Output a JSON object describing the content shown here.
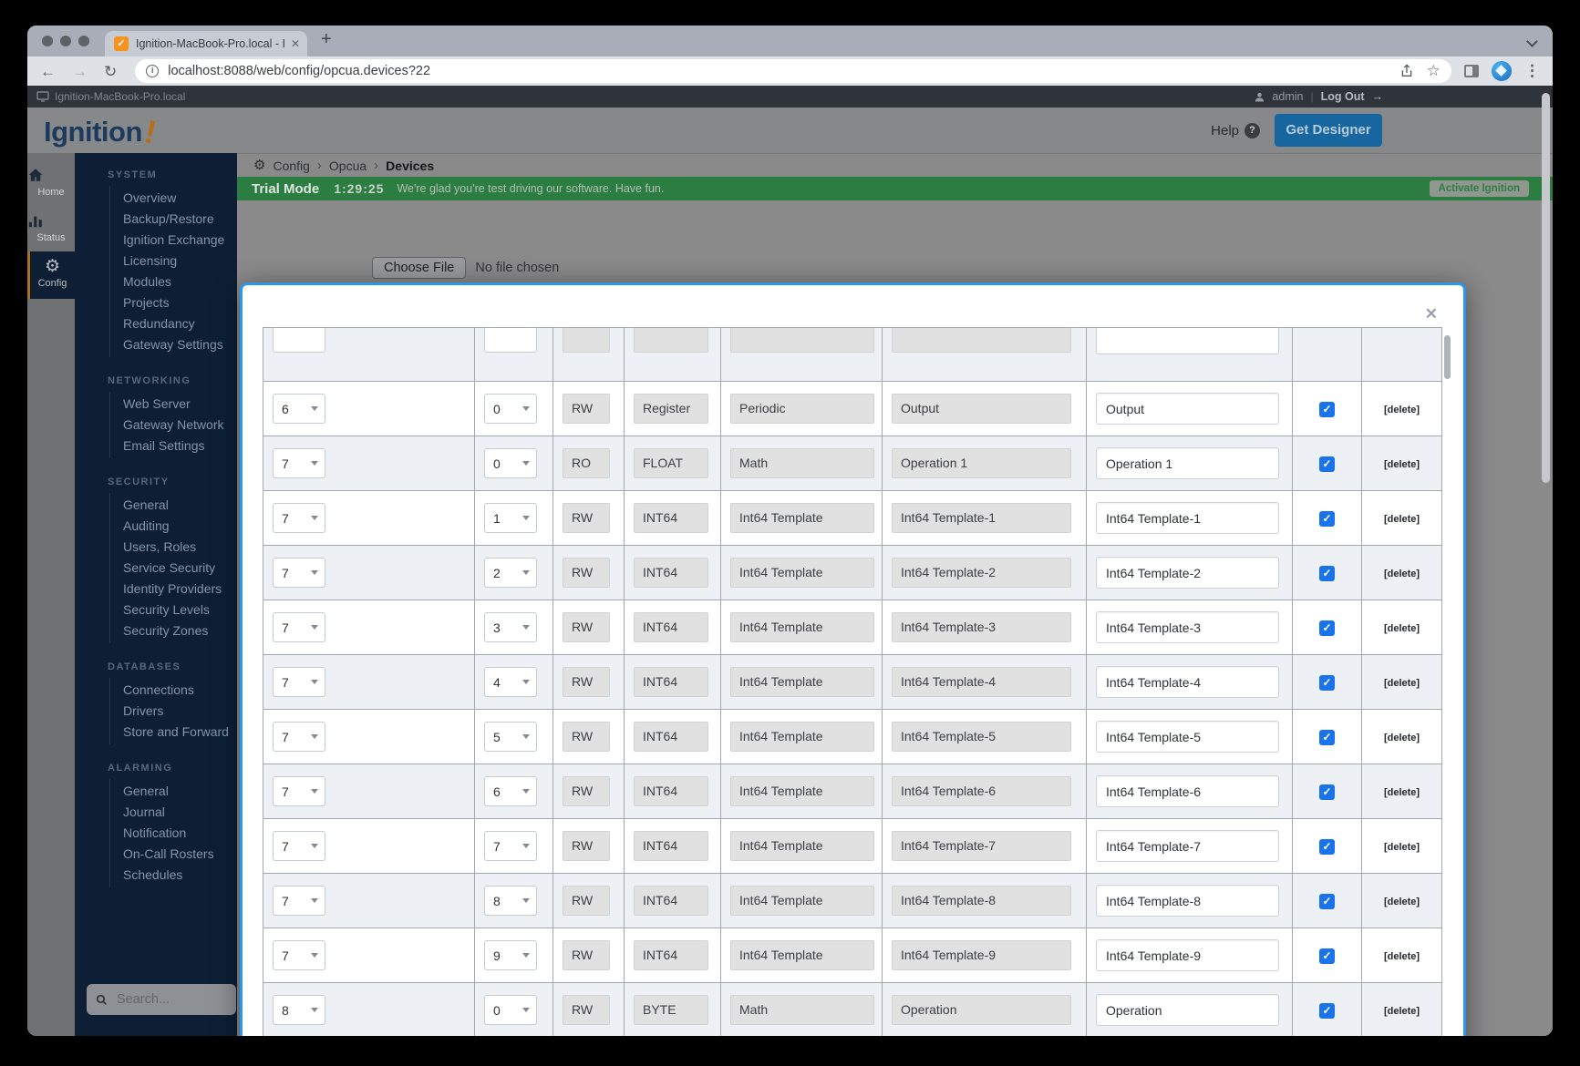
{
  "browser": {
    "tab_title": "Ignition-MacBook-Pro.local - Ig",
    "url": "localhost:8088/web/config/opcua.devices?22",
    "new_tab_glyph": "+",
    "tab_close_glyph": "✕"
  },
  "gateway": {
    "topbar": {
      "hostname": "Ignition-MacBook-Pro.local",
      "user": "admin",
      "divider": "|",
      "logout_label": "Log Out",
      "logout_arrow": "→"
    },
    "header": {
      "logo_text": "Ignition",
      "logo_mark": "!",
      "help_label": "Help",
      "help_glyph": "?",
      "designer_label": "Get Designer"
    }
  },
  "rail": {
    "items": [
      {
        "label": "Home",
        "active": false
      },
      {
        "label": "Status",
        "active": false
      },
      {
        "label": "Config",
        "active": true
      }
    ]
  },
  "sidebar": {
    "sections": [
      {
        "title": "SYSTEM",
        "items": [
          "Overview",
          "Backup/Restore",
          "Ignition Exchange",
          "Licensing",
          "Modules",
          "Projects",
          "Redundancy",
          "Gateway Settings"
        ]
      },
      {
        "title": "NETWORKING",
        "items": [
          "Web Server",
          "Gateway Network",
          "Email Settings"
        ]
      },
      {
        "title": "SECURITY",
        "items": [
          "General",
          "Auditing",
          "Users, Roles",
          "Service Security",
          "Identity Providers",
          "Security Levels",
          "Security Zones"
        ]
      },
      {
        "title": "DATABASES",
        "items": [
          "Connections",
          "Drivers",
          "Store and Forward"
        ]
      },
      {
        "title": "ALARMING",
        "items": [
          "General",
          "Journal",
          "Notification",
          "On-Call Rosters",
          "Schedules"
        ]
      }
    ],
    "search_placeholder": "Search..."
  },
  "breadcrumb": {
    "items": [
      "Config",
      "Opcua"
    ],
    "current": "Devices",
    "separator": "›",
    "gear_glyph": "⚙"
  },
  "trial": {
    "label": "Trial Mode",
    "time": "1:29:25",
    "message": "We're glad you're test driving our software. Have fun.",
    "activate_label": "Activate Ignition"
  },
  "content": {
    "choose_file_label": "Choose File",
    "no_file_label": "No file chosen"
  },
  "modal": {
    "close_glyph": "✕",
    "check_glyph": "✓",
    "delete_label": "[delete]",
    "rows": [
      {
        "device": "6",
        "index": "0",
        "access": "RW",
        "type": "Register",
        "template": "Periodic",
        "name": "Output",
        "value": "Output",
        "checked": true
      },
      {
        "device": "7",
        "index": "0",
        "access": "RO",
        "type": "FLOAT",
        "template": "Math",
        "name": "Operation 1",
        "value": "Operation 1",
        "checked": true
      },
      {
        "device": "7",
        "index": "1",
        "access": "RW",
        "type": "INT64",
        "template": "Int64 Template",
        "name": "Int64 Template-1",
        "value": "Int64 Template-1",
        "checked": true
      },
      {
        "device": "7",
        "index": "2",
        "access": "RW",
        "type": "INT64",
        "template": "Int64 Template",
        "name": "Int64 Template-2",
        "value": "Int64 Template-2",
        "checked": true
      },
      {
        "device": "7",
        "index": "3",
        "access": "RW",
        "type": "INT64",
        "template": "Int64 Template",
        "name": "Int64 Template-3",
        "value": "Int64 Template-3",
        "checked": true
      },
      {
        "device": "7",
        "index": "4",
        "access": "RW",
        "type": "INT64",
        "template": "Int64 Template",
        "name": "Int64 Template-4",
        "value": "Int64 Template-4",
        "checked": true
      },
      {
        "device": "7",
        "index": "5",
        "access": "RW",
        "type": "INT64",
        "template": "Int64 Template",
        "name": "Int64 Template-5",
        "value": "Int64 Template-5",
        "checked": true
      },
      {
        "device": "7",
        "index": "6",
        "access": "RW",
        "type": "INT64",
        "template": "Int64 Template",
        "name": "Int64 Template-6",
        "value": "Int64 Template-6",
        "checked": true
      },
      {
        "device": "7",
        "index": "7",
        "access": "RW",
        "type": "INT64",
        "template": "Int64 Template",
        "name": "Int64 Template-7",
        "value": "Int64 Template-7",
        "checked": true
      },
      {
        "device": "7",
        "index": "8",
        "access": "RW",
        "type": "INT64",
        "template": "Int64 Template",
        "name": "Int64 Template-8",
        "value": "Int64 Template-8",
        "checked": true
      },
      {
        "device": "7",
        "index": "9",
        "access": "RW",
        "type": "INT64",
        "template": "Int64 Template",
        "name": "Int64 Template-9",
        "value": "Int64 Template-9",
        "checked": true
      },
      {
        "device": "8",
        "index": "0",
        "access": "RW",
        "type": "BYTE",
        "template": "Math",
        "name": "Operation",
        "value": "Operation",
        "checked": true
      }
    ]
  },
  "colors": {
    "accent_checkbox_blue": "#1a73e8",
    "modal_border_blue": "#2a97ec",
    "trial_green": "#2c7d42",
    "designer_button_blue": "#17669f",
    "sidebar_navy": "#0e1f35",
    "favicon_orange": "#f6921e"
  }
}
